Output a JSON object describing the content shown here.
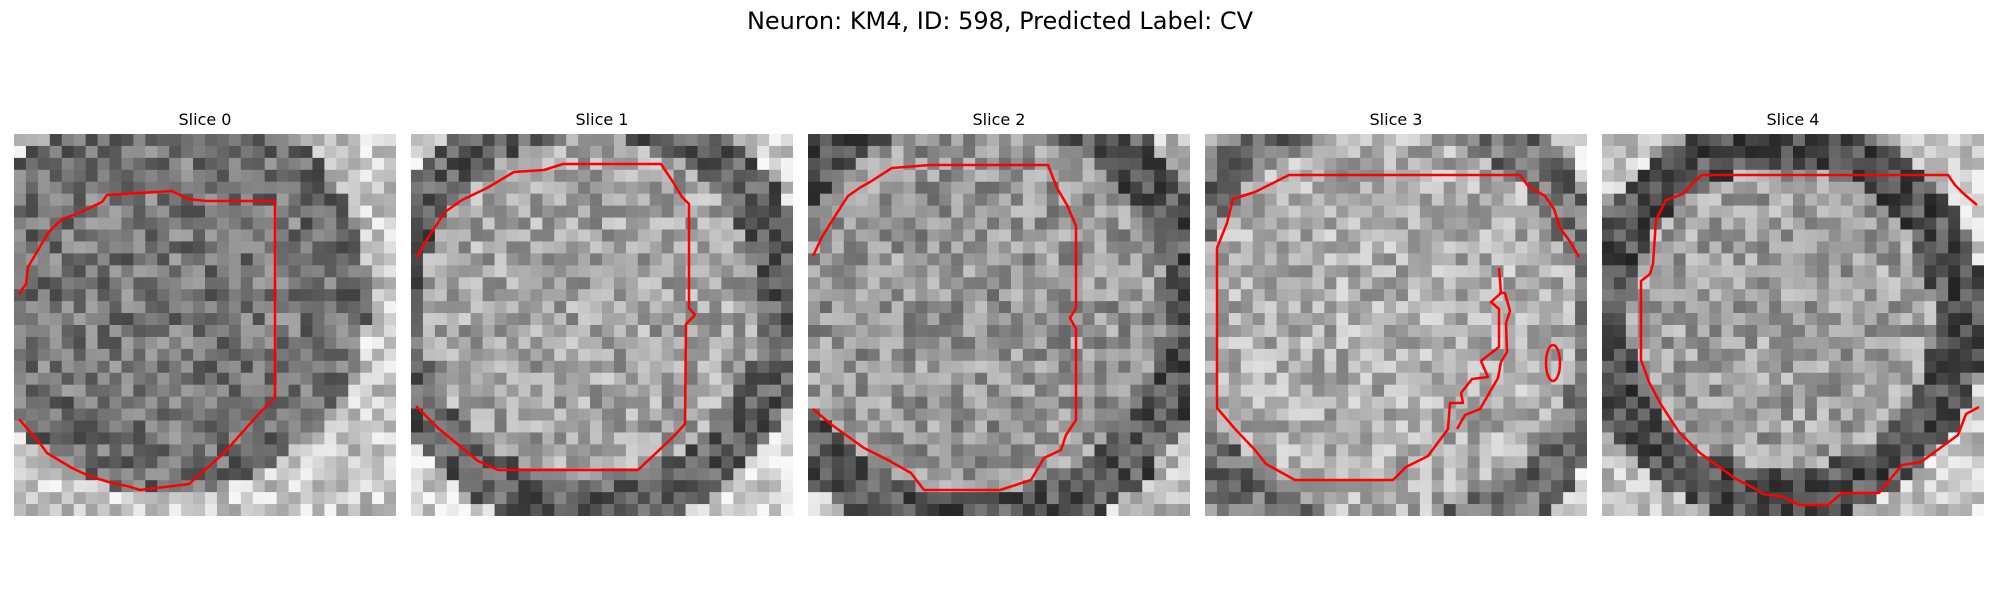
{
  "figure": {
    "title": "Neuron: KM4, ID: 598, Predicted Label: CV"
  },
  "panels": [
    {
      "title": "Slice 0"
    },
    {
      "title": "Slice 1"
    },
    {
      "title": "Slice 2"
    },
    {
      "title": "Slice 3"
    },
    {
      "title": "Slice 4"
    }
  ],
  "colors": {
    "contour": "#ff0000",
    "background": "#ffffff"
  }
}
